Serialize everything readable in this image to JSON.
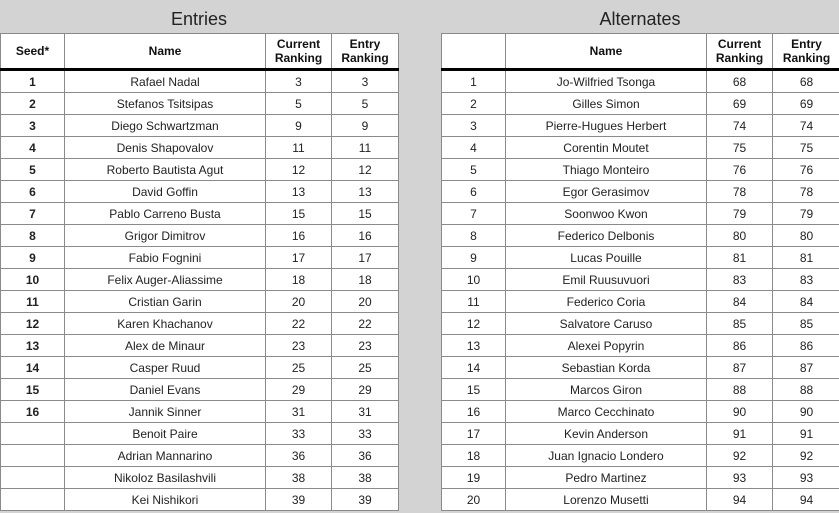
{
  "entries": {
    "title": "Entries",
    "headers": [
      "Seed*",
      "Name",
      "Current\nRanking",
      "Entry\nRanking"
    ],
    "rows": [
      [
        "1",
        "Rafael Nadal",
        "3",
        "3"
      ],
      [
        "2",
        "Stefanos Tsitsipas",
        "5",
        "5"
      ],
      [
        "3",
        "Diego Schwartzman",
        "9",
        "9"
      ],
      [
        "4",
        "Denis Shapovalov",
        "11",
        "11"
      ],
      [
        "5",
        "Roberto Bautista Agut",
        "12",
        "12"
      ],
      [
        "6",
        "David Goffin",
        "13",
        "13"
      ],
      [
        "7",
        "Pablo Carreno Busta",
        "15",
        "15"
      ],
      [
        "8",
        "Grigor Dimitrov",
        "16",
        "16"
      ],
      [
        "9",
        "Fabio Fognini",
        "17",
        "17"
      ],
      [
        "10",
        "Felix Auger-Aliassime",
        "18",
        "18"
      ],
      [
        "11",
        "Cristian Garin",
        "20",
        "20"
      ],
      [
        "12",
        "Karen Khachanov",
        "22",
        "22"
      ],
      [
        "13",
        "Alex de Minaur",
        "23",
        "23"
      ],
      [
        "14",
        "Casper Ruud",
        "25",
        "25"
      ],
      [
        "15",
        "Daniel Evans",
        "29",
        "29"
      ],
      [
        "16",
        "Jannik Sinner",
        "31",
        "31"
      ],
      [
        "",
        "Benoit Paire",
        "33",
        "33"
      ],
      [
        "",
        "Adrian Mannarino",
        "36",
        "36"
      ],
      [
        "",
        "Nikoloz Basilashvili",
        "38",
        "38"
      ],
      [
        "",
        "Kei Nishikori",
        "39",
        "39"
      ]
    ]
  },
  "alternates": {
    "title": "Alternates",
    "headers": [
      "",
      "Name",
      "Current\nRanking",
      "Entry\nRanking"
    ],
    "rows": [
      [
        "1",
        "Jo-Wilfried Tsonga",
        "68",
        "68"
      ],
      [
        "2",
        "Gilles Simon",
        "69",
        "69"
      ],
      [
        "3",
        "Pierre-Hugues Herbert",
        "74",
        "74"
      ],
      [
        "4",
        "Corentin Moutet",
        "75",
        "75"
      ],
      [
        "5",
        "Thiago Monteiro",
        "76",
        "76"
      ],
      [
        "6",
        "Egor Gerasimov",
        "78",
        "78"
      ],
      [
        "7",
        "Soonwoo Kwon",
        "79",
        "79"
      ],
      [
        "8",
        "Federico Delbonis",
        "80",
        "80"
      ],
      [
        "9",
        "Lucas Pouille",
        "81",
        "81"
      ],
      [
        "10",
        "Emil Ruusuvuori",
        "83",
        "83"
      ],
      [
        "11",
        "Federico Coria",
        "84",
        "84"
      ],
      [
        "12",
        "Salvatore Caruso",
        "85",
        "85"
      ],
      [
        "13",
        "Alexei Popyrin",
        "86",
        "86"
      ],
      [
        "14",
        "Sebastian Korda",
        "87",
        "87"
      ],
      [
        "15",
        "Marcos Giron",
        "88",
        "88"
      ],
      [
        "16",
        "Marco Cecchinato",
        "90",
        "90"
      ],
      [
        "17",
        "Kevin Anderson",
        "91",
        "91"
      ],
      [
        "18",
        "Juan Ignacio Londero",
        "92",
        "92"
      ],
      [
        "19",
        "Pedro Martinez",
        "93",
        "93"
      ],
      [
        "20",
        "Lorenzo Musetti",
        "94",
        "94"
      ]
    ]
  }
}
